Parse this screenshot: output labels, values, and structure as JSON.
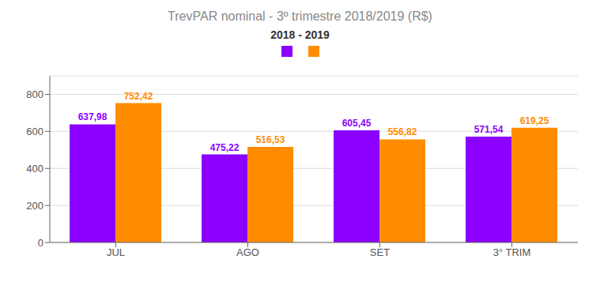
{
  "chart_data": {
    "type": "bar",
    "title": "TrevPAR nominal - 3º trimestre 2018/2019 (R$)",
    "subtitle": "2018 - 2019",
    "categories": [
      "JUL",
      "AGO",
      "SET",
      "3° TRIM"
    ],
    "series": [
      {
        "color": "#8B00FF",
        "values": [
          637.98,
          475.22,
          605.45,
          571.54
        ],
        "value_labels": [
          "637,98",
          "475,22",
          "605,45",
          "571,54"
        ]
      },
      {
        "color": "#FF8C00",
        "values": [
          752.42,
          516.53,
          556.82,
          619.25
        ],
        "value_labels": [
          "752,42",
          "516,53",
          "556,82",
          "619,25"
        ]
      }
    ],
    "ylim": [
      0,
      900
    ],
    "yticks": [
      0,
      200,
      400,
      600,
      800
    ],
    "grid": true,
    "data_labels": true
  }
}
